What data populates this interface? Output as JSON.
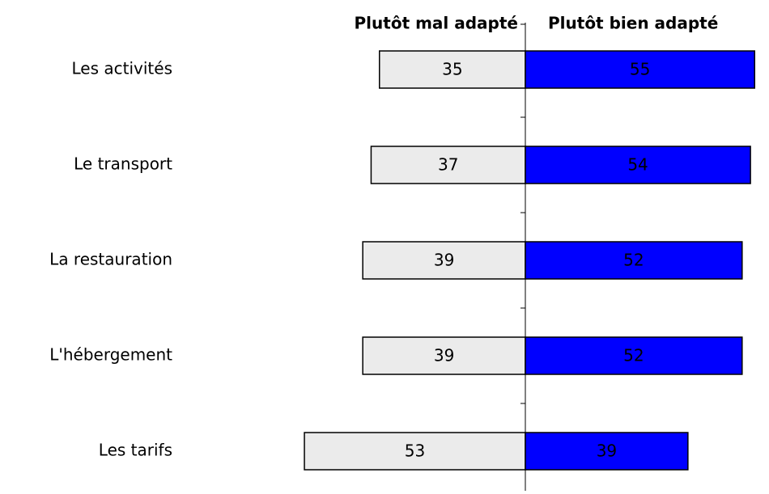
{
  "chart_data": {
    "type": "diverging-bar",
    "categories": [
      "Les activités",
      "Le transport",
      "La restauration",
      "L'hébergement",
      "Les tarifs"
    ],
    "series": [
      {
        "name": "Plutôt mal adapté",
        "color": "#ebebeb",
        "values": [
          35,
          37,
          39,
          39,
          53
        ]
      },
      {
        "name": "Plutôt bien adapté",
        "color": "#0000ff",
        "values": [
          55,
          54,
          52,
          52,
          39
        ]
      }
    ]
  }
}
